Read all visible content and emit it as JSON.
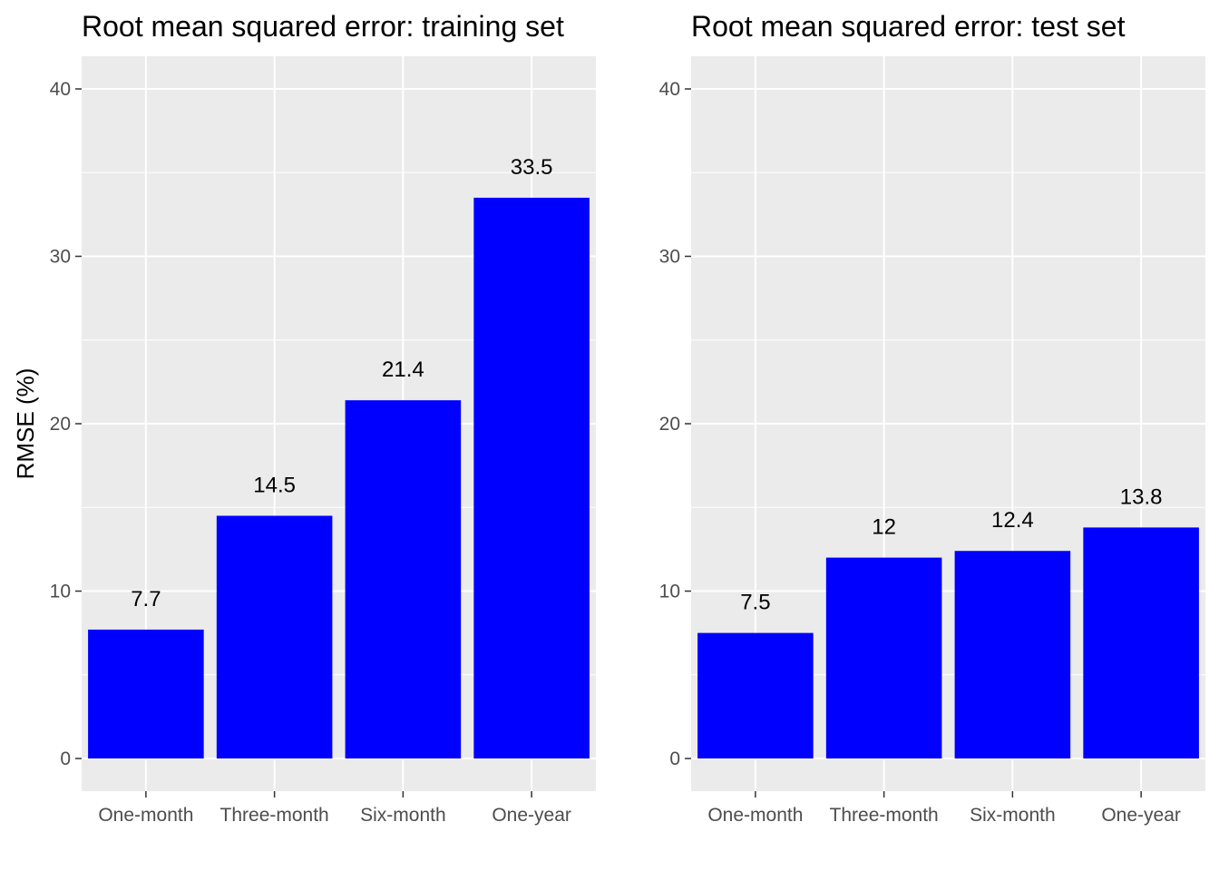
{
  "chart_data": [
    {
      "type": "bar",
      "title": "Root mean squared error: training set",
      "xlabel": "",
      "ylabel": "RMSE (%)",
      "categories": [
        "One-month",
        "Three-month",
        "Six-month",
        "One-year"
      ],
      "values": [
        7.7,
        14.5,
        21.4,
        33.5
      ],
      "value_labels": [
        "7.7",
        "14.5",
        "21.4",
        "33.5"
      ],
      "ylim": [
        0,
        42
      ],
      "yticks": [
        0,
        10,
        20,
        30,
        40
      ],
      "bar_color": "#0000FF",
      "panel_background": "#EBEBEB",
      "grid": true,
      "legend": "none"
    },
    {
      "type": "bar",
      "title": "Root mean squared error: test set",
      "xlabel": "",
      "ylabel": "",
      "categories": [
        "One-month",
        "Three-month",
        "Six-month",
        "One-year"
      ],
      "values": [
        7.5,
        12,
        12.4,
        13.8
      ],
      "value_labels": [
        "7.5",
        "12",
        "12.4",
        "13.8"
      ],
      "ylim": [
        0,
        42
      ],
      "yticks": [
        0,
        10,
        20,
        30,
        40
      ],
      "bar_color": "#0000FF",
      "panel_background": "#EBEBEB",
      "grid": true,
      "legend": "none"
    }
  ]
}
